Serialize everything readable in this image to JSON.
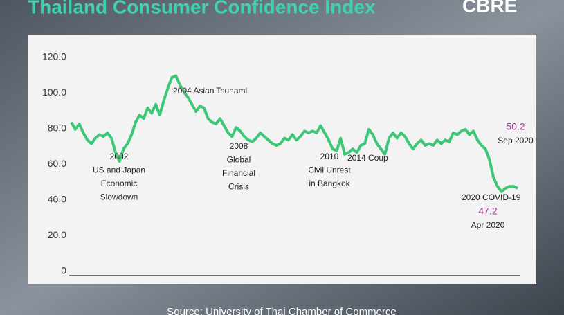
{
  "chart_data": {
    "type": "line",
    "title": "Thailand Consumer Confidence Index",
    "brand": "CBRE",
    "source": "Source: University of Thai Chamber of Commerce",
    "ylim": [
      0,
      125
    ],
    "yticks": [
      0,
      {
        "value": 20,
        "label": "20.0"
      },
      {
        "value": 40,
        "label": "40.0"
      },
      {
        "value": 60,
        "label": "60.0"
      },
      {
        "value": 80,
        "label": "80.0"
      },
      {
        "value": 100,
        "label": "100.0"
      },
      {
        "value": 120,
        "label": "120.0"
      }
    ],
    "series": [
      {
        "color": "#3dc777",
        "values": [
          86,
          82,
          85,
          80,
          76,
          74,
          77,
          79,
          78,
          80,
          77,
          69,
          64,
          71,
          74,
          79,
          86,
          90,
          88,
          94,
          91,
          96,
          90,
          98,
          105,
          111,
          112,
          107,
          103,
          100,
          96,
          92,
          95,
          94,
          88,
          86,
          85,
          88,
          84,
          80,
          78,
          83,
          81,
          78,
          76,
          75,
          77,
          80,
          78,
          76,
          74,
          73,
          74,
          77,
          76,
          79,
          76,
          78,
          81,
          80,
          81,
          80,
          84,
          80,
          76,
          71,
          70,
          77,
          68,
          69,
          71,
          69,
          73,
          74,
          82,
          79,
          74,
          71,
          68,
          77,
          80,
          77,
          80,
          78,
          74,
          71,
          74,
          76,
          73,
          74,
          73,
          76,
          74,
          76,
          75,
          80,
          79,
          81,
          82,
          79,
          81,
          76,
          73,
          71,
          65,
          55,
          50,
          47,
          49,
          50,
          50,
          49
        ]
      }
    ],
    "annotations": [
      {
        "lines": [
          "2002",
          "US and Japan",
          "Economic",
          "Slowdown"
        ]
      },
      {
        "lines": [
          "2004 Asian Tsunami"
        ]
      },
      {
        "lines": [
          "2008",
          "Global",
          "Financial",
          "Crisis"
        ]
      },
      {
        "lines": [
          "2010",
          "Civil Unrest",
          "in Bangkok"
        ]
      },
      {
        "lines": [
          "2014 Coup"
        ]
      },
      {
        "lines": [
          "2020 COVID-19"
        ]
      }
    ],
    "callouts": [
      {
        "value": 50.2,
        "label": "Sep 2020"
      },
      {
        "value": 47.2,
        "label": "Apr 2020"
      }
    ]
  }
}
